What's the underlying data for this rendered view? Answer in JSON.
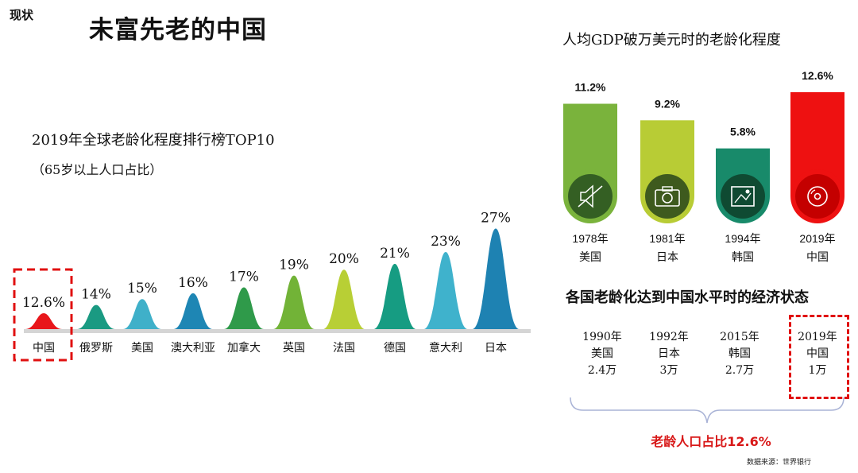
{
  "header": {
    "corner_tag": "现状",
    "title": "未富先老的中国"
  },
  "left_panel": {
    "title": "2019年全球老龄化程度排行榜TOP10",
    "subtitle": "（65岁以上人口占比）"
  },
  "right_panel": {
    "title": "人均GDP破万美元时的老龄化程度"
  },
  "econ_panel": {
    "title": "各国老龄化达到中国水平时的经济状态",
    "items": [
      {
        "year": "1990年",
        "country": "美国",
        "gdp": "2.4万"
      },
      {
        "year": "1992年",
        "country": "日本",
        "gdp": "3万"
      },
      {
        "year": "2015年",
        "country": "韩国",
        "gdp": "2.7万"
      },
      {
        "year": "2019年",
        "country": "中国",
        "gdp": "1万"
      }
    ],
    "conclusion": "老龄人口占比12.6%"
  },
  "source": "数据来源：世界银行",
  "chart_data": [
    {
      "type": "area",
      "title": "2019年全球老龄化程度排行榜TOP10",
      "subtitle": "（65岁以上人口占比）",
      "categories": [
        "中国",
        "俄罗斯",
        "美国",
        "澳大利亚",
        "加拿大",
        "英国",
        "法国",
        "德国",
        "意大利",
        "日本"
      ],
      "values": [
        12.6,
        14,
        15,
        16,
        17,
        19,
        20,
        21,
        23,
        27
      ],
      "value_labels": [
        "12.6%",
        "14%",
        "15%",
        "16%",
        "17%",
        "19%",
        "20%",
        "21%",
        "23%",
        "27%"
      ],
      "colors": [
        "#e8161b",
        "#1a9a82",
        "#3fb0c9",
        "#1e86b4",
        "#2f9a4a",
        "#72b337",
        "#b8cf35",
        "#169c82",
        "#3fb2cc",
        "#1e82b2"
      ],
      "highlight": "中国"
    },
    {
      "type": "bar",
      "title": "人均GDP破万美元时的老龄化程度",
      "categories": [
        "1978年 美国",
        "1981年 日本",
        "1994年 韩国",
        "2019年 中国"
      ],
      "years": [
        "1978年",
        "1981年",
        "1994年",
        "2019年"
      ],
      "countries": [
        "美国",
        "日本",
        "韩国",
        "中国"
      ],
      "values": [
        11.2,
        9.2,
        5.8,
        12.6
      ],
      "value_labels": [
        "11.2%",
        "9.2%",
        "5.8%",
        "12.6%"
      ],
      "colors": [
        "#7ab33c",
        "#b8cc35",
        "#188a6a",
        "#ee1111"
      ],
      "circle_colors": [
        "#345f23",
        "#3e5a1e",
        "#0f4a32",
        "#c40000"
      ],
      "icons": [
        "muted-speaker-icon",
        "camera-icon",
        "picture-icon",
        "disc-icon"
      ]
    }
  ]
}
